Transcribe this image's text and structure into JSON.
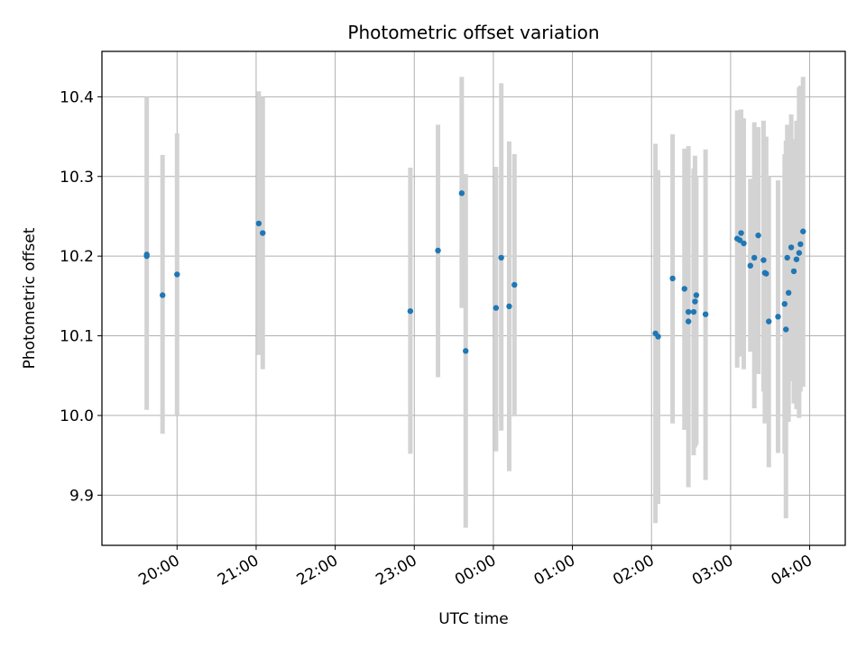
{
  "chart_data": {
    "type": "scatter",
    "title": "Photometric offset variation",
    "xlabel": "UTC time",
    "ylabel": "Photometric offset",
    "grid": true,
    "xlim": [
      "19:03",
      "04:27"
    ],
    "ylim": [
      9.837,
      10.457
    ],
    "x_ticks": [
      "20:00",
      "21:00",
      "22:00",
      "23:00",
      "00:00",
      "01:00",
      "02:00",
      "03:00",
      "04:00"
    ],
    "y_ticks": [
      "9.9",
      "10.0",
      "10.1",
      "10.2",
      "10.3",
      "10.4"
    ],
    "colors": {
      "point": "#1f77b4",
      "errorbar": "#d3d3d3",
      "grid": "#b0b0b0"
    },
    "points": [
      {
        "x": "19:37",
        "y": 10.202,
        "low": 10.007,
        "high": 10.4
      },
      {
        "x": "19:37",
        "y": 10.2
      },
      {
        "x": "19:49",
        "y": 10.151,
        "low": 9.977,
        "high": 10.327
      },
      {
        "x": "20:00",
        "y": 10.177,
        "low": 10.0,
        "high": 10.354
      },
      {
        "x": "21:02",
        "y": 10.241,
        "low": 10.076,
        "high": 10.407
      },
      {
        "x": "21:05",
        "y": 10.229,
        "low": 10.058,
        "high": 10.4
      },
      {
        "x": "22:57",
        "y": 10.131,
        "low": 9.952,
        "high": 10.311
      },
      {
        "x": "23:18",
        "y": 10.207,
        "low": 10.048,
        "high": 10.365
      },
      {
        "x": "23:36",
        "y": 10.279,
        "low": 10.135,
        "high": 10.425
      },
      {
        "x": "23:39",
        "y": 10.081,
        "low": 9.859,
        "high": 10.303
      },
      {
        "x": "00:02",
        "y": 10.135,
        "low": 9.955,
        "high": 10.312
      },
      {
        "x": "00:06",
        "y": 10.198,
        "low": 9.981,
        "high": 10.417
      },
      {
        "x": "00:12",
        "y": 10.137,
        "low": 9.93,
        "high": 10.344
      },
      {
        "x": "00:16",
        "y": 10.164,
        "low": 9.999,
        "high": 10.328
      },
      {
        "x": "02:03",
        "y": 10.103,
        "low": 9.865,
        "high": 10.341
      },
      {
        "x": "02:05",
        "y": 10.099,
        "low": 9.889,
        "high": 10.308
      },
      {
        "x": "02:16",
        "y": 10.172,
        "low": 9.99,
        "high": 10.353
      },
      {
        "x": "02:25",
        "y": 10.159,
        "low": 9.982,
        "high": 10.335
      },
      {
        "x": "02:28",
        "y": 10.118,
        "low": 9.91,
        "high": 10.338
      },
      {
        "x": "02:28",
        "y": 10.13
      },
      {
        "x": "02:32",
        "y": 10.13,
        "low": 9.95,
        "high": 10.31
      },
      {
        "x": "02:33",
        "y": 10.143,
        "low": 9.96,
        "high": 10.326
      },
      {
        "x": "02:34",
        "y": 10.151,
        "low": 9.963,
        "high": 10.3
      },
      {
        "x": "02:41",
        "y": 10.127,
        "low": 9.919,
        "high": 10.334
      },
      {
        "x": "03:05",
        "y": 10.222,
        "low": 10.06,
        "high": 10.383
      },
      {
        "x": "03:07",
        "y": 10.22,
        "low": 10.075,
        "high": 10.365
      },
      {
        "x": "03:08",
        "y": 10.229,
        "low": 10.074,
        "high": 10.384
      },
      {
        "x": "03:10",
        "y": 10.216,
        "low": 10.058,
        "high": 10.373
      },
      {
        "x": "03:15",
        "y": 10.188,
        "low": 10.08,
        "high": 10.297
      },
      {
        "x": "03:18",
        "y": 10.198,
        "low": 10.009,
        "high": 10.368
      },
      {
        "x": "03:21",
        "y": 10.226,
        "low": 10.052,
        "high": 10.362
      },
      {
        "x": "03:25",
        "y": 10.195,
        "low": 10.03,
        "high": 10.37
      },
      {
        "x": "03:26",
        "y": 10.179,
        "low": 9.99,
        "high": 10.348
      },
      {
        "x": "03:27",
        "y": 10.178,
        "low": 10.0,
        "high": 10.35
      },
      {
        "x": "03:29",
        "y": 10.118,
        "low": 9.935,
        "high": 10.3
      },
      {
        "x": "03:36",
        "y": 10.124,
        "low": 9.953,
        "high": 10.295
      },
      {
        "x": "03:41",
        "y": 10.14,
        "low": 9.952,
        "high": 10.328
      },
      {
        "x": "03:42",
        "y": 10.108,
        "low": 9.871,
        "high": 10.345
      },
      {
        "x": "03:43",
        "y": 10.198,
        "low": 10.031,
        "high": 10.365
      },
      {
        "x": "03:44",
        "y": 10.154,
        "low": 9.992,
        "high": 10.317
      },
      {
        "x": "03:46",
        "y": 10.211,
        "low": 10.043,
        "high": 10.378
      },
      {
        "x": "03:48",
        "y": 10.181,
        "low": 10.015,
        "high": 10.347
      },
      {
        "x": "03:50",
        "y": 10.196,
        "low": 10.008,
        "high": 10.37
      },
      {
        "x": "03:52",
        "y": 10.204,
        "low": 9.997,
        "high": 10.412
      },
      {
        "x": "03:53",
        "y": 10.215,
        "low": 10.03,
        "high": 10.414
      },
      {
        "x": "03:55",
        "y": 10.231,
        "low": 10.036,
        "high": 10.425
      }
    ]
  }
}
